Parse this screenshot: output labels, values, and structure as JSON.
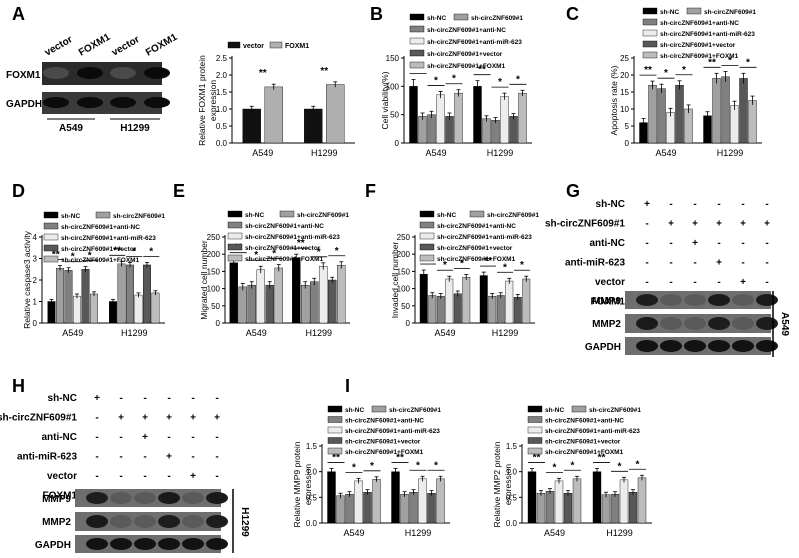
{
  "palette": {
    "sh_NC": "#000000",
    "sh_circ": "#a0a0a0",
    "sh_circ_antiNC": "#808080",
    "sh_circ_antimiR": "#ececec",
    "sh_circ_vector": "#585858",
    "sh_circ_FOXM1": "#bcbcbc",
    "vector": "#111111",
    "FOXM1": "#b0b0b0"
  },
  "panel_letters": [
    "A",
    "B",
    "C",
    "D",
    "E",
    "F",
    "G",
    "H",
    "I"
  ],
  "blots": {
    "A": {
      "column_labels": [
        "vector",
        "FOXM1",
        "vector",
        "FOXM1"
      ],
      "row_labels": [
        "FOXM1",
        "GAPDH"
      ],
      "groups": [
        "A549",
        "H1299"
      ]
    },
    "G": {
      "conditions": [
        {
          "label": "sh-NC",
          "marks": [
            "+",
            "-",
            "-",
            "-",
            "-",
            "-"
          ]
        },
        {
          "label": "sh-circZNF609#1",
          "marks": [
            "-",
            "+",
            "+",
            "+",
            "+",
            "+"
          ]
        },
        {
          "label": "anti-NC",
          "marks": [
            "-",
            "-",
            "+",
            "-",
            "-",
            "-"
          ]
        },
        {
          "label": "anti-miR-623",
          "marks": [
            "-",
            "-",
            "-",
            "+",
            "-",
            "-"
          ]
        },
        {
          "label": "vector",
          "marks": [
            "-",
            "-",
            "-",
            "-",
            "+",
            "-"
          ]
        },
        {
          "label": "FOXM1",
          "marks": [
            "-",
            "-",
            "-",
            "-",
            "-",
            "+"
          ]
        }
      ],
      "rows": [
        "MMP9",
        "MMP2",
        "GAPDH"
      ],
      "cell_line": "A549"
    },
    "H": {
      "conditions": [
        {
          "label": "sh-NC",
          "marks": [
            "+",
            "-",
            "-",
            "-",
            "-",
            "-"
          ]
        },
        {
          "label": "sh-circZNF609#1",
          "marks": [
            "-",
            "+",
            "+",
            "+",
            "+",
            "+"
          ]
        },
        {
          "label": "anti-NC",
          "marks": [
            "-",
            "-",
            "+",
            "-",
            "-",
            "-"
          ]
        },
        {
          "label": "anti-miR-623",
          "marks": [
            "-",
            "-",
            "-",
            "+",
            "-",
            "-"
          ]
        },
        {
          "label": "vector",
          "marks": [
            "-",
            "-",
            "-",
            "-",
            "+",
            "-"
          ]
        },
        {
          "label": "FOXM1",
          "marks": [
            "-",
            "-",
            "-",
            "-",
            "-",
            "+"
          ]
        }
      ],
      "rows": [
        "MMP9",
        "MMP2",
        "GAPDH"
      ],
      "cell_line": "H1299"
    }
  },
  "chart_data": [
    {
      "panel": "A",
      "type": "bar",
      "ylabel": "Relative FOXM1 protein expression",
      "categories": [
        "A549",
        "H1299"
      ],
      "ylim": [
        0,
        2.5
      ],
      "yticks": [
        0.0,
        0.5,
        1.0,
        1.5,
        2.0,
        2.5
      ],
      "legend": [
        "vector",
        "FOXM1"
      ],
      "series": [
        {
          "name": "vector",
          "values": [
            1.0,
            1.0
          ],
          "errors": [
            0.08,
            0.08
          ]
        },
        {
          "name": "FOXM1",
          "values": [
            1.65,
            1.72
          ],
          "errors": [
            0.08,
            0.08
          ]
        }
      ],
      "annotations": [
        "**",
        "**"
      ]
    },
    {
      "panel": "B",
      "type": "bar",
      "ylabel": "Cell viability(%)",
      "categories": [
        "A549",
        "H1299"
      ],
      "ylim": [
        0,
        150
      ],
      "yticks": [
        0,
        50,
        100,
        150
      ],
      "legend": [
        "sh-NC",
        "sh-circZNF609#1",
        "sh-circZNF609#1+anti-NC",
        "sh-circZNF609#1+anti-miR-623",
        "sh-circZNF609#1+vector",
        "sh-circZNF609#1+FOXM1"
      ],
      "series": [
        {
          "name": "sh-NC",
          "values": [
            100,
            100
          ],
          "errors": [
            12,
            10
          ]
        },
        {
          "name": "sh-circZNF609#1",
          "values": [
            47,
            43
          ],
          "errors": [
            6,
            5
          ]
        },
        {
          "name": "sh-circZNF609#1+anti-NC",
          "values": [
            50,
            40
          ],
          "errors": [
            6,
            5
          ]
        },
        {
          "name": "sh-circZNF609#1+anti-miR-623",
          "values": [
            85,
            82
          ],
          "errors": [
            6,
            6
          ]
        },
        {
          "name": "sh-circZNF609#1+vector",
          "values": [
            47,
            47
          ],
          "errors": [
            6,
            5
          ]
        },
        {
          "name": "sh-circZNF609#1+FOXM1",
          "values": [
            88,
            88
          ],
          "errors": [
            6,
            5
          ]
        }
      ],
      "annotations": [
        "**",
        "*",
        "*",
        "**",
        "*",
        "*"
      ]
    },
    {
      "panel": "C",
      "type": "bar",
      "ylabel": "Apoptosis rate (%)",
      "categories": [
        "A549",
        "H1299"
      ],
      "ylim": [
        0,
        25
      ],
      "yticks": [
        0,
        5,
        10,
        15,
        20,
        25
      ],
      "legend": [
        "sh-NC",
        "sh-circZNF609#1",
        "sh-circZNF609#1+anti-NC",
        "sh-circZNF609#1+anti-miR-623",
        "sh-circZNF609#1+vector",
        "sh-circZNF609#1+FOXM1"
      ],
      "series": [
        {
          "name": "sh-NC",
          "values": [
            6,
            8
          ],
          "errors": [
            1.2,
            1.2
          ]
        },
        {
          "name": "sh-circZNF609#1",
          "values": [
            17,
            19
          ],
          "errors": [
            1.2,
            1.5
          ]
        },
        {
          "name": "sh-circZNF609#1+anti-NC",
          "values": [
            16,
            19.5
          ],
          "errors": [
            1.3,
            1.5
          ]
        },
        {
          "name": "sh-circZNF609#1+anti-miR-623",
          "values": [
            9,
            11
          ],
          "errors": [
            1.2,
            1.3
          ]
        },
        {
          "name": "sh-circZNF609#1+vector",
          "values": [
            17,
            19
          ],
          "errors": [
            1.3,
            1.5
          ]
        },
        {
          "name": "sh-circZNF609#1+FOXM1",
          "values": [
            10,
            12.5
          ],
          "errors": [
            1.2,
            1.3
          ]
        }
      ],
      "annotations": [
        "**",
        "*",
        "*",
        "**",
        "*",
        "*"
      ]
    },
    {
      "panel": "D",
      "type": "bar",
      "ylabel": "Relative caspase3 activity",
      "categories": [
        "A549",
        "H1299"
      ],
      "ylim": [
        0,
        4
      ],
      "yticks": [
        0,
        1,
        2,
        3,
        4
      ],
      "legend": [
        "sh-NC",
        "sh-circZNF609#1",
        "sh-circZNF609#1+anti-NC",
        "sh-circZNF609#1+anti-miR-623",
        "sh-circZNF609#1+vector",
        "sh-circZNF609#1+FOXM1"
      ],
      "series": [
        {
          "name": "sh-NC",
          "values": [
            1.0,
            1.0
          ],
          "errors": [
            0.1,
            0.1
          ]
        },
        {
          "name": "sh-circZNF609#1",
          "values": [
            2.55,
            2.75
          ],
          "errors": [
            0.12,
            0.12
          ]
        },
        {
          "name": "sh-circZNF609#1+anti-NC",
          "values": [
            2.45,
            2.7
          ],
          "errors": [
            0.12,
            0.12
          ]
        },
        {
          "name": "sh-circZNF609#1+anti-miR-623",
          "values": [
            1.25,
            1.3
          ],
          "errors": [
            0.1,
            0.1
          ]
        },
        {
          "name": "sh-circZNF609#1+vector",
          "values": [
            2.5,
            2.7
          ],
          "errors": [
            0.12,
            0.12
          ]
        },
        {
          "name": "sh-circZNF609#1+FOXM1",
          "values": [
            1.35,
            1.4
          ],
          "errors": [
            0.1,
            0.1
          ]
        }
      ],
      "annotations": [
        "**",
        "*",
        "*",
        "**",
        "*",
        "*"
      ]
    },
    {
      "panel": "E",
      "type": "bar",
      "ylabel": "Migrated cell number",
      "categories": [
        "A549",
        "H1299"
      ],
      "ylim": [
        0,
        250
      ],
      "yticks": [
        0,
        50,
        100,
        150,
        200,
        250
      ],
      "legend": [
        "sh-NC",
        "sh-circZNF609#1",
        "sh-circZNF609#1+anti-NC",
        "sh-circZNF609#1+anti-miR-623",
        "sh-circZNF609#1+vector",
        "sh-circZNF609#1+FOXM1"
      ],
      "series": [
        {
          "name": "sh-NC",
          "values": [
            175,
            190
          ],
          "errors": [
            12,
            10
          ]
        },
        {
          "name": "sh-circZNF609#1",
          "values": [
            105,
            110
          ],
          "errors": [
            10,
            10
          ]
        },
        {
          "name": "sh-circZNF609#1+anti-NC",
          "values": [
            110,
            120
          ],
          "errors": [
            10,
            10
          ]
        },
        {
          "name": "sh-circZNF609#1+anti-miR-623",
          "values": [
            155,
            165
          ],
          "errors": [
            10,
            10
          ]
        },
        {
          "name": "sh-circZNF609#1+vector",
          "values": [
            110,
            125
          ],
          "errors": [
            10,
            8
          ]
        },
        {
          "name": "sh-circZNF609#1+FOXM1",
          "values": [
            160,
            168
          ],
          "errors": [
            10,
            10
          ]
        }
      ],
      "annotations": [
        "**",
        "*",
        "*",
        "**",
        "*",
        "*"
      ]
    },
    {
      "panel": "F",
      "type": "bar",
      "ylabel": "Invaded cell number",
      "categories": [
        "A549",
        "H1299"
      ],
      "ylim": [
        0,
        250
      ],
      "yticks": [
        0,
        50,
        100,
        150,
        200,
        250
      ],
      "legend": [
        "sh-NC",
        "sh-circZNF609#1",
        "sh-circZNF609#1+anti-NC",
        "sh-circZNF609#1+anti-miR-623",
        "sh-circZNF609#1+vector",
        "sh-circZNF609#1+FOXM1"
      ],
      "series": [
        {
          "name": "sh-NC",
          "values": [
            142,
            138
          ],
          "errors": [
            12,
            10
          ]
        },
        {
          "name": "sh-circZNF609#1",
          "values": [
            80,
            78
          ],
          "errors": [
            8,
            8
          ]
        },
        {
          "name": "sh-circZNF609#1+anti-NC",
          "values": [
            78,
            80
          ],
          "errors": [
            8,
            8
          ]
        },
        {
          "name": "sh-circZNF609#1+anti-miR-623",
          "values": [
            128,
            122
          ],
          "errors": [
            8,
            8
          ]
        },
        {
          "name": "sh-circZNF609#1+vector",
          "values": [
            85,
            75
          ],
          "errors": [
            8,
            8
          ]
        },
        {
          "name": "sh-circZNF609#1+FOXM1",
          "values": [
            133,
            128
          ],
          "errors": [
            8,
            8
          ]
        }
      ],
      "annotations": [
        "**",
        "*",
        "*",
        "**",
        "*",
        "*"
      ]
    },
    {
      "panel": "I1",
      "type": "bar",
      "ylabel": "Relative MMP9 protein expression",
      "categories": [
        "A549",
        "H1299"
      ],
      "ylim": [
        0,
        1.5
      ],
      "yticks": [
        0.0,
        0.5,
        1.0,
        1.5
      ],
      "legend": [
        "sh-NC",
        "sh-circZNF609#1",
        "sh-circZNF609#1+anti-NC",
        "sh-circZNF609#1+anti-miR-623",
        "sh-circZNF609#1+vector",
        "sh-circZNF609#1+FOXM1"
      ],
      "series": [
        {
          "name": "sh-NC",
          "values": [
            1.0,
            1.0
          ],
          "errors": [
            0.06,
            0.06
          ]
        },
        {
          "name": "sh-circZNF609#1",
          "values": [
            0.53,
            0.56
          ],
          "errors": [
            0.05,
            0.05
          ]
        },
        {
          "name": "sh-circZNF609#1+anti-NC",
          "values": [
            0.56,
            0.6
          ],
          "errors": [
            0.05,
            0.05
          ]
        },
        {
          "name": "sh-circZNF609#1+anti-miR-623",
          "values": [
            0.82,
            0.86
          ],
          "errors": [
            0.05,
            0.05
          ]
        },
        {
          "name": "sh-circZNF609#1+vector",
          "values": [
            0.6,
            0.58
          ],
          "errors": [
            0.05,
            0.05
          ]
        },
        {
          "name": "sh-circZNF609#1+FOXM1",
          "values": [
            0.85,
            0.86
          ],
          "errors": [
            0.05,
            0.05
          ]
        }
      ],
      "annotations": [
        "**",
        "*",
        "*",
        "**",
        "*",
        "*"
      ]
    },
    {
      "panel": "I2",
      "type": "bar",
      "ylabel": "Relative MMP2 protein expression",
      "categories": [
        "A549",
        "H1299"
      ],
      "ylim": [
        0,
        1.5
      ],
      "yticks": [
        0.0,
        0.5,
        1.0,
        1.5
      ],
      "legend": [
        "sh-NC",
        "sh-circZNF609#1",
        "sh-circZNF609#1+anti-NC",
        "sh-circZNF609#1+anti-miR-623",
        "sh-circZNF609#1+vector",
        "sh-circZNF609#1+FOXM1"
      ],
      "series": [
        {
          "name": "sh-NC",
          "values": [
            1.0,
            1.0
          ],
          "errors": [
            0.06,
            0.06
          ]
        },
        {
          "name": "sh-circZNF609#1",
          "values": [
            0.58,
            0.55
          ],
          "errors": [
            0.05,
            0.05
          ]
        },
        {
          "name": "sh-circZNF609#1+anti-NC",
          "values": [
            0.62,
            0.56
          ],
          "errors": [
            0.05,
            0.05
          ]
        },
        {
          "name": "sh-circZNF609#1+anti-miR-623",
          "values": [
            0.82,
            0.84
          ],
          "errors": [
            0.05,
            0.05
          ]
        },
        {
          "name": "sh-circZNF609#1+vector",
          "values": [
            0.58,
            0.6
          ],
          "errors": [
            0.05,
            0.05
          ]
        },
        {
          "name": "sh-circZNF609#1+FOXM1",
          "values": [
            0.86,
            0.88
          ],
          "errors": [
            0.05,
            0.05
          ]
        }
      ],
      "annotations": [
        "**",
        "*",
        "*",
        "**",
        "*",
        "*"
      ]
    }
  ]
}
